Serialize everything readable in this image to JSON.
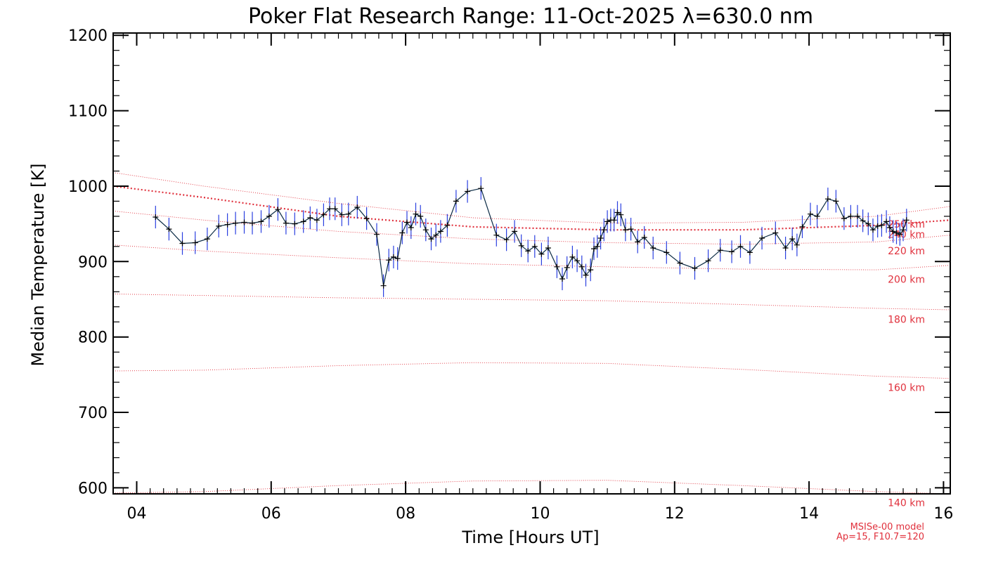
{
  "chart_data": {
    "type": "line",
    "title": "Poker Flat Research Range: 11-Oct-2025 λ=630.0 nm",
    "xlabel": "Time [Hours UT]",
    "ylabel": "Median Temperature [K]",
    "xlim": [
      3.65,
      16.1
    ],
    "ylim": [
      592,
      1203
    ],
    "xticks": [
      4,
      6,
      8,
      10,
      12,
      14,
      16
    ],
    "xtick_labels": [
      "04",
      "06",
      "08",
      "10",
      "12",
      "14",
      "16"
    ],
    "yticks": [
      600,
      700,
      800,
      900,
      1000,
      1100,
      1200
    ],
    "ytick_labels": [
      "600",
      "700",
      "800",
      "900",
      "1000",
      "1100",
      "1200"
    ],
    "series": [
      {
        "name": "Median Temperature",
        "color": "#0a2a44",
        "errorbar_color": "#2a3fe0",
        "error": 15,
        "x": [
          4.28,
          4.48,
          4.68,
          4.87,
          5.05,
          5.22,
          5.35,
          5.47,
          5.6,
          5.72,
          5.85,
          5.97,
          6.1,
          6.22,
          6.35,
          6.48,
          6.58,
          6.68,
          6.78,
          6.87,
          6.95,
          7.05,
          7.15,
          7.28,
          7.42,
          7.57,
          7.67,
          7.75,
          7.82,
          7.88,
          7.95,
          8.02,
          8.08,
          8.15,
          8.22,
          8.3,
          8.38,
          8.45,
          8.52,
          8.62,
          8.75,
          8.92,
          9.12,
          9.35,
          9.5,
          9.62,
          9.72,
          9.82,
          9.92,
          10.02,
          10.12,
          10.25,
          10.33,
          10.4,
          10.48,
          10.55,
          10.62,
          10.68,
          10.75,
          10.8,
          10.85,
          10.9,
          10.95,
          11.0,
          11.05,
          11.1,
          11.15,
          11.2,
          11.27,
          11.35,
          11.45,
          11.55,
          11.68,
          11.88,
          12.08,
          12.3,
          12.5,
          12.68,
          12.85,
          12.98,
          13.12,
          13.3,
          13.5,
          13.65,
          13.75,
          13.82,
          13.9,
          14.02,
          14.12,
          14.28,
          14.4,
          14.52,
          14.62,
          14.72,
          14.8,
          14.88,
          14.95,
          15.02,
          15.08,
          15.15,
          15.2,
          15.25,
          15.3,
          15.35,
          15.4,
          15.45
        ],
        "y": [
          959,
          943,
          924,
          925,
          930,
          947,
          949,
          951,
          952,
          951,
          953,
          960,
          969,
          951,
          950,
          953,
          958,
          955,
          962,
          970,
          970,
          962,
          963,
          972,
          957,
          936,
          868,
          902,
          906,
          904,
          938,
          952,
          945,
          963,
          960,
          942,
          930,
          935,
          940,
          948,
          980,
          993,
          997,
          935,
          929,
          940,
          921,
          914,
          920,
          910,
          918,
          893,
          877,
          892,
          906,
          901,
          893,
          882,
          889,
          917,
          920,
          931,
          942,
          953,
          955,
          955,
          965,
          962,
          942,
          943,
          926,
          932,
          918,
          912,
          898,
          891,
          901,
          915,
          913,
          920,
          912,
          931,
          938,
          918,
          930,
          922,
          946,
          963,
          960,
          983,
          980,
          957,
          960,
          960,
          954,
          950,
          942,
          947,
          948,
          953,
          945,
          940,
          938,
          936,
          942,
          955
        ]
      }
    ],
    "model_series": [
      {
        "name": "140 km",
        "label": "140 km",
        "x": [
          3.65,
          5,
          7,
          9,
          11,
          13,
          15,
          16.1
        ],
        "y": [
          593,
          595,
          603,
          609,
          610,
          603,
          595,
          592
        ]
      },
      {
        "name": "160 km",
        "label": "160 km",
        "x": [
          3.65,
          5,
          7,
          9,
          11,
          13,
          15,
          16.1
        ],
        "y": [
          755,
          756,
          762,
          766,
          765,
          757,
          748,
          745
        ]
      },
      {
        "name": "180 km",
        "label": "180 km",
        "x": [
          3.65,
          5,
          7,
          9,
          11,
          13,
          15,
          16.1
        ],
        "y": [
          857,
          855,
          852,
          850,
          848,
          843,
          838,
          836
        ]
      },
      {
        "name": "200 km",
        "label": "200 km",
        "x": [
          3.65,
          5,
          7,
          9,
          11,
          13,
          15,
          16.1
        ],
        "y": [
          922,
          914,
          905,
          897,
          893,
          890,
          889,
          895
        ]
      },
      {
        "name": "220 km",
        "label": "220 km",
        "x": [
          3.65,
          5,
          7,
          9,
          11,
          13,
          15,
          16.1
        ],
        "y": [
          967,
          955,
          940,
          930,
          925,
          923,
          926,
          935
        ]
      },
      {
        "name": "240 km",
        "label": "240 km",
        "x": [
          3.65,
          5,
          7,
          9,
          11,
          13,
          15,
          16.1
        ],
        "y": [
          1000,
          985,
          960,
          946,
          942,
          942,
          948,
          955
        ]
      },
      {
        "name": "250 km",
        "label": "250 km",
        "x": [
          3.65,
          5,
          7,
          9,
          11,
          13,
          15,
          16.1
        ],
        "y": [
          1018,
          1000,
          977,
          958,
          951,
          952,
          960,
          973
        ]
      }
    ],
    "model_highlight": "240 km",
    "model_color": "#e0303c",
    "model_note": [
      "MSISe-00 model",
      "Ap=15, F10.7=120"
    ]
  }
}
